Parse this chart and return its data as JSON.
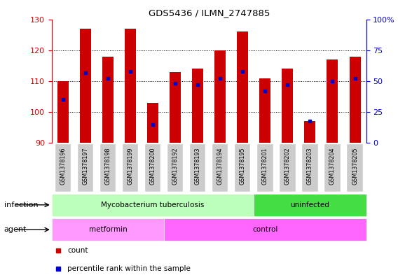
{
  "title": "GDS5436 / ILMN_2747885",
  "samples": [
    "GSM1378196",
    "GSM1378197",
    "GSM1378198",
    "GSM1378199",
    "GSM1378200",
    "GSM1378192",
    "GSM1378193",
    "GSM1378194",
    "GSM1378195",
    "GSM1378201",
    "GSM1378202",
    "GSM1378203",
    "GSM1378204",
    "GSM1378205"
  ],
  "count_values": [
    110,
    127,
    118,
    127,
    103,
    113,
    114,
    120,
    126,
    111,
    114,
    97,
    117,
    118
  ],
  "percentile_values": [
    35,
    57,
    52,
    58,
    15,
    48,
    47,
    52,
    58,
    42,
    47,
    18,
    50,
    52
  ],
  "ylim_left": [
    90,
    130
  ],
  "ylim_right": [
    0,
    100
  ],
  "yticks_left": [
    90,
    100,
    110,
    120,
    130
  ],
  "yticks_right": [
    0,
    25,
    50,
    75,
    100
  ],
  "bar_color": "#cc0000",
  "dot_color": "#0000cc",
  "background_color": "#ffffff",
  "tick_label_bg": "#cccccc",
  "infection_groups": [
    {
      "label": "Mycobacterium tuberculosis",
      "start": 0,
      "end": 9,
      "color": "#bbffbb"
    },
    {
      "label": "uninfected",
      "start": 9,
      "end": 14,
      "color": "#44dd44"
    }
  ],
  "agent_groups": [
    {
      "label": "metformin",
      "start": 0,
      "end": 5,
      "color": "#ff99ff"
    },
    {
      "label": "control",
      "start": 5,
      "end": 14,
      "color": "#ff66ff"
    }
  ],
  "left_axis_color": "#cc0000",
  "right_axis_color": "#0000cc",
  "legend_items": [
    {
      "color": "#cc0000",
      "marker": "s",
      "label": "count"
    },
    {
      "color": "#0000cc",
      "marker": "s",
      "label": "percentile rank within the sample"
    }
  ]
}
